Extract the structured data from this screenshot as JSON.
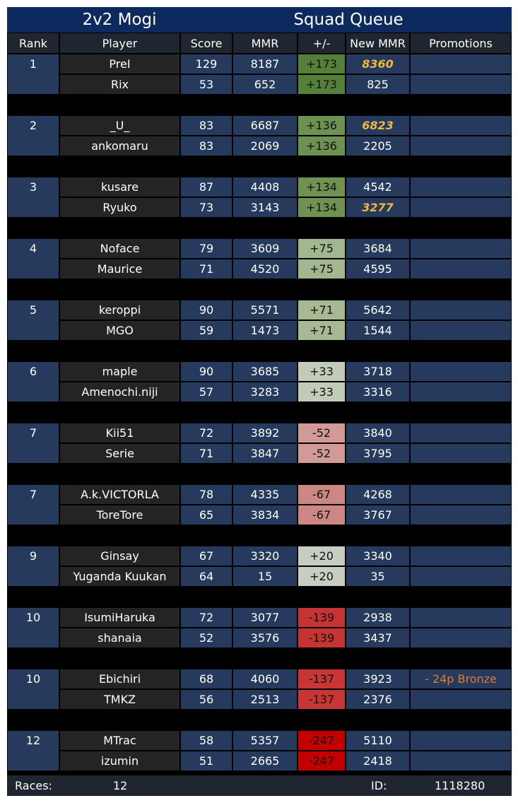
{
  "title": {
    "left": "2v2 Mogi",
    "right": "Squad Queue"
  },
  "headers": [
    "Rank",
    "Player",
    "Score",
    "MMR",
    "+/-",
    "New MMR",
    "Promotions"
  ],
  "teams": [
    {
      "rank": "1",
      "players": [
        {
          "name": "PreI",
          "score": "129",
          "mmr": "8187",
          "delta": "+173",
          "delta_color": "#55803a",
          "new_mmr": "8360",
          "highlight": true,
          "promotion": ""
        },
        {
          "name": "Rix",
          "score": "53",
          "mmr": "652",
          "delta": "+173",
          "delta_color": "#55803a",
          "new_mmr": "825",
          "highlight": false,
          "promotion": ""
        }
      ]
    },
    {
      "rank": "2",
      "players": [
        {
          "name": "_U_",
          "score": "83",
          "mmr": "6687",
          "delta": "+136",
          "delta_color": "#6d9150",
          "new_mmr": "6823",
          "highlight": true,
          "promotion": ""
        },
        {
          "name": "ankomaru",
          "score": "83",
          "mmr": "2069",
          "delta": "+136",
          "delta_color": "#6d9150",
          "new_mmr": "2205",
          "highlight": false,
          "promotion": ""
        }
      ]
    },
    {
      "rank": "3",
      "players": [
        {
          "name": "kusare",
          "score": "87",
          "mmr": "4408",
          "delta": "+134",
          "delta_color": "#6f9152",
          "new_mmr": "4542",
          "highlight": false,
          "promotion": ""
        },
        {
          "name": "Ryuko",
          "score": "73",
          "mmr": "3143",
          "delta": "+134",
          "delta_color": "#6f9152",
          "new_mmr": "3277",
          "highlight": true,
          "promotion": ""
        }
      ]
    },
    {
      "rank": "4",
      "players": [
        {
          "name": "Noface",
          "score": "79",
          "mmr": "3609",
          "delta": "+75",
          "delta_color": "#a2b68f",
          "new_mmr": "3684",
          "highlight": false,
          "promotion": ""
        },
        {
          "name": "Maurice",
          "score": "71",
          "mmr": "4520",
          "delta": "+75",
          "delta_color": "#a2b68f",
          "new_mmr": "4595",
          "highlight": false,
          "promotion": ""
        }
      ]
    },
    {
      "rank": "5",
      "players": [
        {
          "name": "keroppi",
          "score": "90",
          "mmr": "5571",
          "delta": "+71",
          "delta_color": "#a6b993",
          "new_mmr": "5642",
          "highlight": false,
          "promotion": ""
        },
        {
          "name": "MGO",
          "score": "59",
          "mmr": "1473",
          "delta": "+71",
          "delta_color": "#a6b993",
          "new_mmr": "1544",
          "highlight": false,
          "promotion": ""
        }
      ]
    },
    {
      "rank": "6",
      "players": [
        {
          "name": "maple",
          "score": "90",
          "mmr": "3685",
          "delta": "+33",
          "delta_color": "#c2cbb8",
          "new_mmr": "3718",
          "highlight": false,
          "promotion": ""
        },
        {
          "name": "Amenochi.niji",
          "score": "57",
          "mmr": "3283",
          "delta": "+33",
          "delta_color": "#c2cbb8",
          "new_mmr": "3316",
          "highlight": false,
          "promotion": ""
        }
      ]
    },
    {
      "rank": "7",
      "players": [
        {
          "name": "Kii51",
          "score": "72",
          "mmr": "3892",
          "delta": "-52",
          "delta_color": "#d19a97",
          "new_mmr": "3840",
          "highlight": false,
          "promotion": ""
        },
        {
          "name": "Serie",
          "score": "71",
          "mmr": "3847",
          "delta": "-52",
          "delta_color": "#d19a97",
          "new_mmr": "3795",
          "highlight": false,
          "promotion": ""
        }
      ]
    },
    {
      "rank": "7",
      "players": [
        {
          "name": "A.k.VICTORLA",
          "score": "78",
          "mmr": "4335",
          "delta": "-67",
          "delta_color": "#cc8784",
          "new_mmr": "4268",
          "highlight": false,
          "promotion": ""
        },
        {
          "name": "ToreTore",
          "score": "65",
          "mmr": "3834",
          "delta": "-67",
          "delta_color": "#cc8784",
          "new_mmr": "3767",
          "highlight": false,
          "promotion": ""
        }
      ]
    },
    {
      "rank": "9",
      "players": [
        {
          "name": "Ginsay",
          "score": "67",
          "mmr": "3320",
          "delta": "+20",
          "delta_color": "#c8cdc2",
          "new_mmr": "3340",
          "highlight": false,
          "promotion": ""
        },
        {
          "name": "Yuganda Kuukan",
          "score": "64",
          "mmr": "15",
          "delta": "+20",
          "delta_color": "#c8cdc2",
          "new_mmr": "35",
          "highlight": false,
          "promotion": ""
        }
      ]
    },
    {
      "rank": "10",
      "players": [
        {
          "name": "IsumiHaruka",
          "score": "72",
          "mmr": "3077",
          "delta": "-139",
          "delta_color": "#c63333",
          "new_mmr": "2938",
          "highlight": false,
          "promotion": ""
        },
        {
          "name": "shanaia",
          "score": "52",
          "mmr": "3576",
          "delta": "-139",
          "delta_color": "#c63333",
          "new_mmr": "3437",
          "highlight": false,
          "promotion": ""
        }
      ]
    },
    {
      "rank": "10",
      "players": [
        {
          "name": "Ebichiri",
          "score": "68",
          "mmr": "4060",
          "delta": "-137",
          "delta_color": "#c73535",
          "new_mmr": "3923",
          "highlight": false,
          "promotion": "- 24p Bronze"
        },
        {
          "name": "TMKZ",
          "score": "56",
          "mmr": "2513",
          "delta": "-137",
          "delta_color": "#c73535",
          "new_mmr": "2376",
          "highlight": false,
          "promotion": ""
        }
      ]
    },
    {
      "rank": "12",
      "players": [
        {
          "name": "MTrac",
          "score": "58",
          "mmr": "5357",
          "delta": "-247",
          "delta_color": "#c20000",
          "new_mmr": "5110",
          "highlight": false,
          "promotion": ""
        },
        {
          "name": "izumin",
          "score": "51",
          "mmr": "2665",
          "delta": "-247",
          "delta_color": "#c20000",
          "new_mmr": "2418",
          "highlight": false,
          "promotion": ""
        }
      ]
    }
  ],
  "footer": {
    "races_label": "Races:",
    "races_value": "12",
    "id_label": "ID:",
    "id_value": "1118280"
  }
}
